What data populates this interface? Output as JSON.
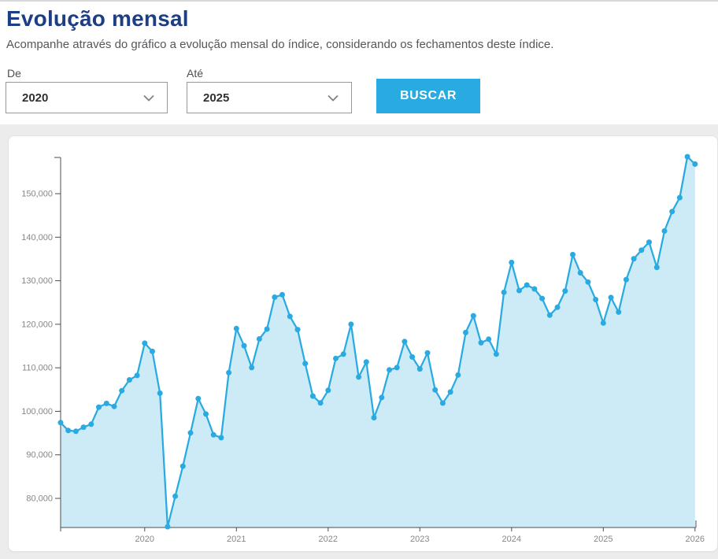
{
  "page": {
    "title": "Evolução mensal",
    "subtitle": "Acompanhe através do gráfico a evolução mensal do índice, considerando os fechamentos deste índice."
  },
  "filters": {
    "from_label": "De",
    "from_value": "2020",
    "to_label": "Até",
    "to_value": "2025",
    "search_button_label": "BUSCAR"
  },
  "colors": {
    "accent_cyan": "#29abe2",
    "area_fill": "#cdeaf7",
    "title_navy": "#1d3e82",
    "axis_line": "#4d4d4d",
    "axis_label": "#85878a"
  },
  "chart_data": {
    "type": "area",
    "title": "",
    "xlabel": "",
    "ylabel": "",
    "x_unit": "month",
    "x_start": "2019-01",
    "x_end": "2025-12",
    "years_order": [
      "2019",
      "2020",
      "2021",
      "2022",
      "2023",
      "2024",
      "2025"
    ],
    "values_by_year": {
      "2019": [
        97394,
        95584,
        95415,
        96353,
        97030,
        100967,
        101812,
        101135,
        104745,
        107220,
        108233,
        115645
      ],
      "2020": [
        113761,
        104172,
        73020,
        80506,
        87403,
        95056,
        102912,
        99369,
        94603,
        93952,
        108893,
        119017
      ],
      "2021": [
        115068,
        110035,
        116634,
        118894,
        126216,
        126802,
        121801,
        118781,
        110979,
        103501,
        101915,
        104822
      ],
      "2022": [
        112144,
        113142,
        119999,
        107876,
        111351,
        98542,
        103165,
        109523,
        110037,
        116037,
        112486,
        109735
      ],
      "2023": [
        113431,
        104932,
        101882,
        104432,
        108335,
        118087,
        121943,
        115742,
        116565,
        113144,
        127331,
        134185
      ],
      "2024": [
        127752,
        129020,
        128106,
        125924,
        122098,
        123907,
        127652,
        136004,
        131816,
        129713,
        125668,
        120283
      ],
      "2025": [
        126135,
        122799,
        130260,
        135067,
        137027,
        138854,
        133071,
        141422,
        145900,
        149100,
        158500,
        156800
      ]
    },
    "x_tick_labels": [
      "2020",
      "2021",
      "2022",
      "2023",
      "2024",
      "2025",
      "2026"
    ],
    "y_tick_values": [
      80000,
      90000,
      100000,
      110000,
      120000,
      130000,
      140000,
      150000
    ],
    "y_tick_labels": [
      "80,000",
      "90,000",
      "100,000",
      "110,000",
      "120,000",
      "130,000",
      "140,000",
      "150,000"
    ],
    "ylim": [
      73000,
      159000
    ],
    "grid": false,
    "legend": "none",
    "marker": "circle"
  }
}
